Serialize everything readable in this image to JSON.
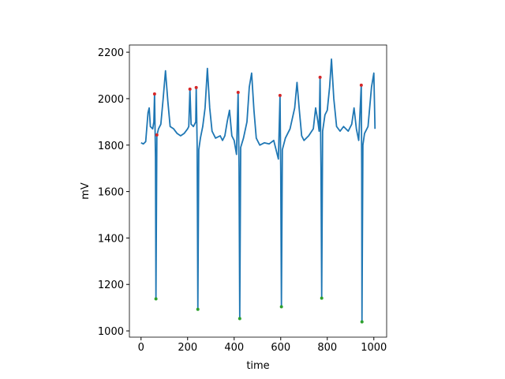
{
  "chart_data": {
    "type": "line",
    "xlabel": "time",
    "ylabel": "mV",
    "x": [
      0,
      10,
      20,
      30,
      35,
      40,
      50,
      55,
      58,
      62,
      64,
      68,
      70,
      75,
      85,
      95,
      105,
      115,
      125,
      140,
      155,
      170,
      185,
      200,
      205,
      210,
      215,
      225,
      235,
      237,
      241,
      244,
      248,
      255,
      265,
      275,
      285,
      295,
      305,
      320,
      340,
      350,
      360,
      370,
      380,
      390,
      400,
      410,
      417,
      421,
      424,
      428,
      440,
      455,
      465,
      475,
      485,
      495,
      510,
      530,
      550,
      570,
      580,
      590,
      597,
      600,
      603,
      607,
      620,
      640,
      660,
      670,
      680,
      690,
      700,
      720,
      740,
      750,
      760,
      765,
      769,
      773,
      776,
      780,
      790,
      800,
      810,
      818,
      828,
      840,
      855,
      870,
      890,
      905,
      915,
      925,
      935,
      946,
      948,
      949,
      953,
      960,
      975,
      990,
      1000,
      1005
    ],
    "values": [
      1810,
      1805,
      1815,
      1940,
      1960,
      1880,
      1870,
      1900,
      2020,
      1750,
      1138,
      1844,
      1850,
      1870,
      1890,
      2000,
      2120,
      1990,
      1880,
      1870,
      1850,
      1840,
      1850,
      1870,
      1880,
      2041,
      1890,
      1880,
      1900,
      2048,
      1800,
      1093,
      1780,
      1830,
      1880,
      1960,
      2130,
      1960,
      1860,
      1830,
      1840,
      1820,
      1840,
      1900,
      1950,
      1840,
      1820,
      1760,
      2027,
      1700,
      1053,
      1790,
      1830,
      1900,
      2050,
      2110,
      1950,
      1830,
      1800,
      1810,
      1805,
      1820,
      1780,
      1740,
      2014,
      1700,
      1104,
      1780,
      1830,
      1870,
      1960,
      2070,
      1950,
      1840,
      1820,
      1840,
      1870,
      1960,
      1900,
      1860,
      2092,
      1700,
      1141,
      1860,
      1930,
      1950,
      2050,
      2170,
      2000,
      1880,
      1860,
      1880,
      1860,
      1890,
      1960,
      1870,
      1820,
      2058,
      1700,
      1039,
      1800,
      1850,
      1880,
      2050,
      2110,
      1870
    ],
    "color": "#1f77b4",
    "markers": [
      {
        "x": [
          58,
          68,
          210,
          237,
          417,
          597,
          769,
          946
        ],
        "values": [
          2020,
          1844,
          2041,
          2048,
          2027,
          2014,
          2092,
          2058
        ],
        "color": "#d62728"
      },
      {
        "x": [
          64,
          244,
          424,
          603,
          776,
          949
        ],
        "values": [
          1138,
          1093,
          1053,
          1104,
          1141,
          1039
        ],
        "color": "#2ca02c"
      }
    ],
    "xlim": [
      -50,
      1055
    ],
    "ylim": [
      973,
      2231
    ],
    "xticks": [
      0,
      200,
      400,
      600,
      800,
      1000
    ],
    "yticks": [
      1000,
      1200,
      1400,
      1600,
      1800,
      2000,
      2200
    ]
  }
}
